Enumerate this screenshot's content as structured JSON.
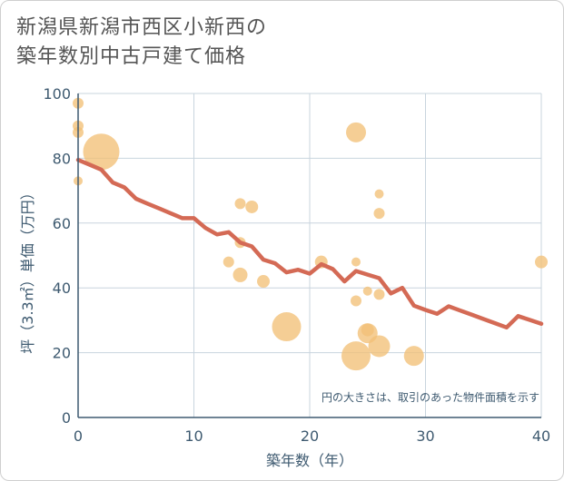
{
  "title_line1": "新潟県新潟市西区小新西の",
  "title_line2": "築年数別中古戸建て価格",
  "chart_data": {
    "type": "scatter",
    "xlabel": "築年数（年）",
    "ylabel": "坪（3.3㎡）単価（万円）",
    "xlim": [
      0,
      40
    ],
    "ylim": [
      0,
      100
    ],
    "xticks": [
      "0",
      "10",
      "20",
      "30",
      "40"
    ],
    "yticks": [
      "0",
      "20",
      "40",
      "60",
      "80",
      "100"
    ],
    "grid": true,
    "annotation": "円の大きさは、取引のあった物件面積を示す",
    "colors": {
      "points": "#f2c077",
      "trend": "#d46a55",
      "grid": "#c8d4de",
      "axis": "#3e5a70"
    },
    "scatter_series": [
      {
        "x": 0,
        "y": 97,
        "size": 6
      },
      {
        "x": 0,
        "y": 90,
        "size": 6
      },
      {
        "x": 0,
        "y": 88,
        "size": 6
      },
      {
        "x": 0,
        "y": 73,
        "size": 5
      },
      {
        "x": 2,
        "y": 82,
        "size": 20
      },
      {
        "x": 13,
        "y": 48,
        "size": 6
      },
      {
        "x": 14,
        "y": 66,
        "size": 6
      },
      {
        "x": 14,
        "y": 54,
        "size": 6
      },
      {
        "x": 14,
        "y": 44,
        "size": 8
      },
      {
        "x": 15,
        "y": 65,
        "size": 7
      },
      {
        "x": 16,
        "y": 42,
        "size": 7
      },
      {
        "x": 18,
        "y": 28,
        "size": 16
      },
      {
        "x": 21,
        "y": 48,
        "size": 7
      },
      {
        "x": 24,
        "y": 88,
        "size": 11
      },
      {
        "x": 24,
        "y": 48,
        "size": 5
      },
      {
        "x": 24,
        "y": 36,
        "size": 6
      },
      {
        "x": 24,
        "y": 19,
        "size": 16
      },
      {
        "x": 25,
        "y": 39,
        "size": 5
      },
      {
        "x": 25,
        "y": 27,
        "size": 7
      },
      {
        "x": 25,
        "y": 26,
        "size": 11
      },
      {
        "x": 26,
        "y": 69,
        "size": 5
      },
      {
        "x": 26,
        "y": 63,
        "size": 6
      },
      {
        "x": 26,
        "y": 38,
        "size": 6
      },
      {
        "x": 26,
        "y": 22,
        "size": 12
      },
      {
        "x": 29,
        "y": 19,
        "size": 11
      },
      {
        "x": 40,
        "y": 48,
        "size": 7
      }
    ],
    "trend_line": {
      "x": [
        0,
        1,
        2,
        3,
        4,
        5,
        6,
        7,
        8,
        9,
        10,
        11,
        12,
        13,
        14,
        15,
        16,
        17,
        18,
        19,
        20,
        21,
        22,
        23,
        24,
        25,
        26,
        27,
        28,
        29,
        30,
        31,
        32,
        33,
        34,
        35,
        36,
        37,
        38,
        39,
        40
      ],
      "y": [
        79.5,
        78,
        76.5,
        72.5,
        71,
        67.5,
        66,
        64.5,
        63,
        61.5,
        61.5,
        58.5,
        56.5,
        57.2,
        54,
        52.8,
        48.7,
        47.6,
        44.8,
        45.6,
        44.4,
        47.3,
        45.8,
        42,
        45.2,
        44.1,
        43,
        38.3,
        40,
        34.5,
        33.2,
        32,
        34.3,
        33,
        31.7,
        30.4,
        29.1,
        27.8,
        31.3,
        30.1,
        28.9
      ]
    }
  }
}
